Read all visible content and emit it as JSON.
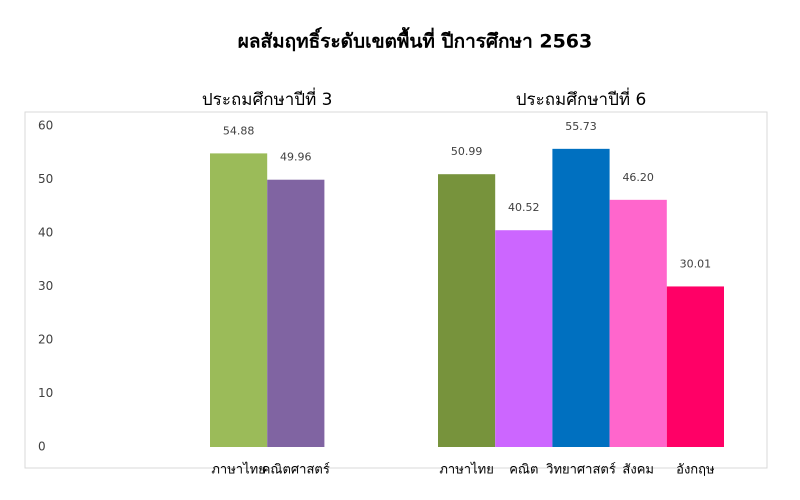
{
  "chart_data": {
    "type": "bar",
    "title": "ผลสัมฤทธิ์ระดับเขตพื้นที่ ปีการศึกษา 2563",
    "ylim": [
      0,
      60
    ],
    "yticks": [
      0,
      10,
      20,
      30,
      40,
      50,
      60
    ],
    "grid": false,
    "groups": [
      {
        "label": "ประถมศึกษาปีที่ 3",
        "categories": [
          "ภาษาไทย",
          "คณิตศาสตร์"
        ],
        "values": [
          54.88,
          49.96
        ],
        "value_labels": [
          "54.88",
          "49.96"
        ],
        "colors": [
          "#9bbb59",
          "#8064a2"
        ]
      },
      {
        "label": "ประถมศึกษาปีที่ 6",
        "categories": [
          "ภาษาไทย",
          "คณิต",
          "วิทยาศาสตร์",
          "สังคม",
          "อังกฤษ"
        ],
        "values": [
          50.99,
          40.52,
          55.73,
          46.2,
          30.01
        ],
        "value_labels": [
          "50.99",
          "40.52",
          "55.73",
          "46.20",
          "30.01"
        ],
        "colors": [
          "#77933c",
          "#cc66ff",
          "#0070c0",
          "#ff66cc",
          "#ff0066"
        ]
      }
    ]
  }
}
